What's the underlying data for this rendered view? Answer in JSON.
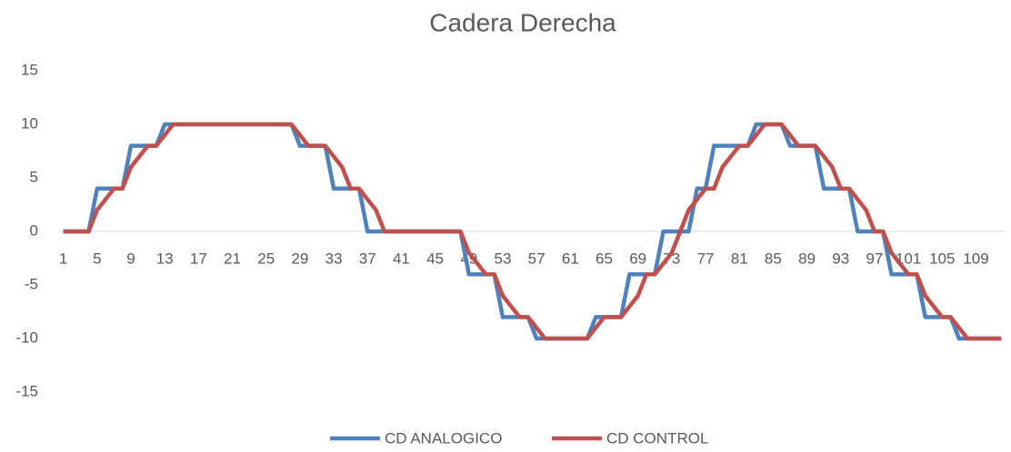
{
  "chart_data": {
    "type": "line",
    "title": "Cadera Derecha",
    "categories": [
      1,
      null,
      null,
      null,
      5,
      null,
      null,
      null,
      9,
      null,
      null,
      null,
      13,
      null,
      null,
      null,
      17,
      null,
      null,
      null,
      21,
      null,
      null,
      null,
      25,
      null,
      null,
      null,
      29,
      null,
      null,
      null,
      33,
      null,
      null,
      null,
      37,
      null,
      null,
      null,
      41,
      null,
      null,
      null,
      45,
      null,
      null,
      null,
      49,
      null,
      null,
      null,
      53,
      null,
      null,
      null,
      57,
      null,
      null,
      null,
      61,
      null,
      null,
      null,
      65,
      null,
      null,
      null,
      69,
      null,
      null,
      null,
      73,
      null,
      null,
      null,
      77,
      null,
      null,
      null,
      81,
      null,
      null,
      null,
      85,
      null,
      null,
      null,
      89,
      null,
      null,
      null,
      93,
      null,
      null,
      null,
      97,
      null,
      null,
      null,
      101,
      null,
      null,
      null,
      105,
      null,
      null,
      null,
      109,
      null,
      null,
      null
    ],
    "series": [
      {
        "name": "CD ANALOGICO",
        "color": "#4f81bd",
        "values": [
          0,
          0,
          0,
          0,
          4,
          4,
          4,
          4,
          8,
          8,
          8,
          8,
          10,
          10,
          10,
          10,
          10,
          10,
          10,
          10,
          10,
          10,
          10,
          10,
          10,
          10,
          10,
          10,
          8,
          8,
          8,
          8,
          4,
          4,
          4,
          4,
          0,
          0,
          0,
          0,
          0,
          0,
          0,
          0,
          0,
          0,
          0,
          0,
          -4,
          -4,
          -4,
          -4,
          -8,
          -8,
          -8,
          -8,
          -10,
          -10,
          -10,
          -10,
          -10,
          -10,
          -10,
          -8,
          -8,
          -8,
          -8,
          -4,
          -4,
          -4,
          -4,
          0,
          0,
          0,
          0,
          4,
          4,
          8,
          8,
          8,
          8,
          8,
          10,
          10,
          10,
          10,
          8,
          8,
          8,
          8,
          4,
          4,
          4,
          4,
          0,
          0,
          0,
          0,
          -4,
          -4,
          -4,
          -4,
          -8,
          -8,
          -8,
          -8,
          -10,
          -10,
          -10,
          -10,
          -10,
          -10
        ]
      },
      {
        "name": "CD CONTROL",
        "color": "#c0504d",
        "values": [
          0,
          0,
          0,
          0,
          2,
          3,
          4,
          4,
          6,
          7,
          8,
          8,
          9,
          10,
          10,
          10,
          10,
          10,
          10,
          10,
          10,
          10,
          10,
          10,
          10,
          10,
          10,
          10,
          9,
          8,
          8,
          8,
          7,
          6,
          4,
          4,
          3,
          2,
          0,
          0,
          0,
          0,
          0,
          0,
          0,
          0,
          0,
          0,
          -2,
          -3,
          -4,
          -4,
          -6,
          -7,
          -8,
          -8,
          -9,
          -10,
          -10,
          -10,
          -10,
          -10,
          -10,
          -9,
          -8,
          -8,
          -8,
          -7,
          -6,
          -4,
          -4,
          -3,
          -2,
          0,
          2,
          3,
          4,
          4,
          6,
          7,
          8,
          8,
          9,
          10,
          10,
          10,
          9,
          8,
          8,
          8,
          7,
          6,
          4,
          4,
          3,
          2,
          0,
          0,
          -2,
          -3,
          -4,
          -4,
          -6,
          -7,
          -8,
          -8,
          -9,
          -10,
          -10,
          -10,
          -10,
          -10
        ]
      }
    ],
    "ylim": [
      -15,
      15
    ],
    "yticks": [
      -15,
      -10,
      -5,
      0,
      5,
      10,
      15
    ],
    "grid": false,
    "legend": "bottom"
  }
}
